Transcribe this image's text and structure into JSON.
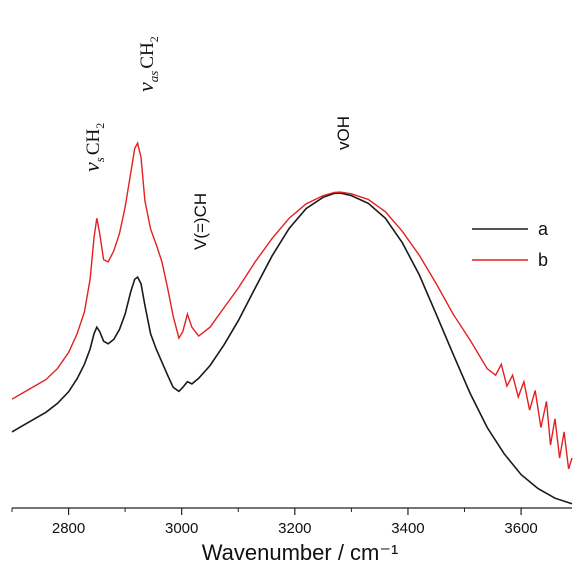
{
  "chart_data": {
    "type": "line",
    "title": "",
    "xlabel": "Wavenumber / cm⁻¹",
    "ylabel": "",
    "xlim": [
      2700,
      3690
    ],
    "ylim": [
      0,
      1
    ],
    "x_ticks": [
      "2800",
      "3000",
      "3200",
      "3400",
      "3600"
    ],
    "y_axis_visible": false,
    "grid": false,
    "legend_position": "right",
    "colors": {
      "a": "#1a1a1a",
      "b": "#e32020",
      "axis": "#222222"
    },
    "series": [
      {
        "name": "a",
        "x": [
          2700,
          2720,
          2740,
          2760,
          2780,
          2800,
          2815,
          2828,
          2838,
          2845,
          2850,
          2855,
          2862,
          2870,
          2880,
          2890,
          2900,
          2910,
          2917,
          2922,
          2928,
          2935,
          2945,
          2955,
          2965,
          2975,
          2985,
          2995,
          3002,
          3010,
          3018,
          3030,
          3050,
          3075,
          3100,
          3130,
          3160,
          3190,
          3220,
          3250,
          3270,
          3280,
          3300,
          3330,
          3360,
          3390,
          3420,
          3450,
          3480,
          3510,
          3540,
          3570,
          3600,
          3630,
          3660,
          3690
        ],
        "y": [
          0.17,
          0.185,
          0.2,
          0.215,
          0.235,
          0.262,
          0.292,
          0.325,
          0.36,
          0.395,
          0.41,
          0.4,
          0.378,
          0.372,
          0.382,
          0.405,
          0.44,
          0.492,
          0.52,
          0.525,
          0.51,
          0.46,
          0.395,
          0.36,
          0.33,
          0.3,
          0.272,
          0.263,
          0.272,
          0.285,
          0.28,
          0.293,
          0.322,
          0.37,
          0.425,
          0.5,
          0.574,
          0.637,
          0.682,
          0.708,
          0.717,
          0.718,
          0.712,
          0.694,
          0.66,
          0.604,
          0.53,
          0.44,
          0.348,
          0.258,
          0.18,
          0.12,
          0.072,
          0.04,
          0.018,
          0.005
        ]
      },
      {
        "name": "b",
        "x": [
          2700,
          2720,
          2740,
          2760,
          2780,
          2800,
          2815,
          2828,
          2838,
          2845,
          2850,
          2855,
          2862,
          2870,
          2880,
          2890,
          2900,
          2910,
          2917,
          2922,
          2928,
          2935,
          2945,
          2955,
          2965,
          2975,
          2985,
          2995,
          3002,
          3010,
          3018,
          3030,
          3050,
          3075,
          3100,
          3130,
          3160,
          3190,
          3220,
          3250,
          3270,
          3280,
          3300,
          3330,
          3360,
          3390,
          3420,
          3450,
          3480,
          3510,
          3540,
          3555,
          3565,
          3575,
          3585,
          3595,
          3605,
          3615,
          3625,
          3635,
          3645,
          3652,
          3660,
          3668,
          3676,
          3684,
          3690
        ],
        "y": [
          0.245,
          0.26,
          0.275,
          0.29,
          0.315,
          0.352,
          0.395,
          0.445,
          0.52,
          0.615,
          0.66,
          0.625,
          0.565,
          0.56,
          0.585,
          0.625,
          0.685,
          0.765,
          0.82,
          0.832,
          0.8,
          0.7,
          0.635,
          0.6,
          0.56,
          0.5,
          0.435,
          0.385,
          0.4,
          0.44,
          0.41,
          0.39,
          0.41,
          0.455,
          0.5,
          0.56,
          0.614,
          0.66,
          0.693,
          0.712,
          0.719,
          0.72,
          0.716,
          0.703,
          0.675,
          0.63,
          0.575,
          0.51,
          0.44,
          0.38,
          0.315,
          0.3,
          0.325,
          0.275,
          0.3,
          0.25,
          0.285,
          0.22,
          0.265,
          0.18,
          0.24,
          0.14,
          0.2,
          0.11,
          0.17,
          0.085,
          0.11
        ]
      }
    ],
    "legend": [
      "a",
      "b"
    ],
    "annotations": [
      {
        "id": "vs-ch2",
        "symbol": "ν",
        "subscript": "s",
        "text": "CH",
        "subscript2": "2"
      },
      {
        "id": "vas-ch2",
        "symbol": "ν",
        "subscript": "as",
        "text": "CH",
        "subscript2": "2"
      },
      {
        "id": "v-eq-ch",
        "text": "V(=)CH"
      },
      {
        "id": "voh",
        "text": "vOH"
      }
    ]
  }
}
